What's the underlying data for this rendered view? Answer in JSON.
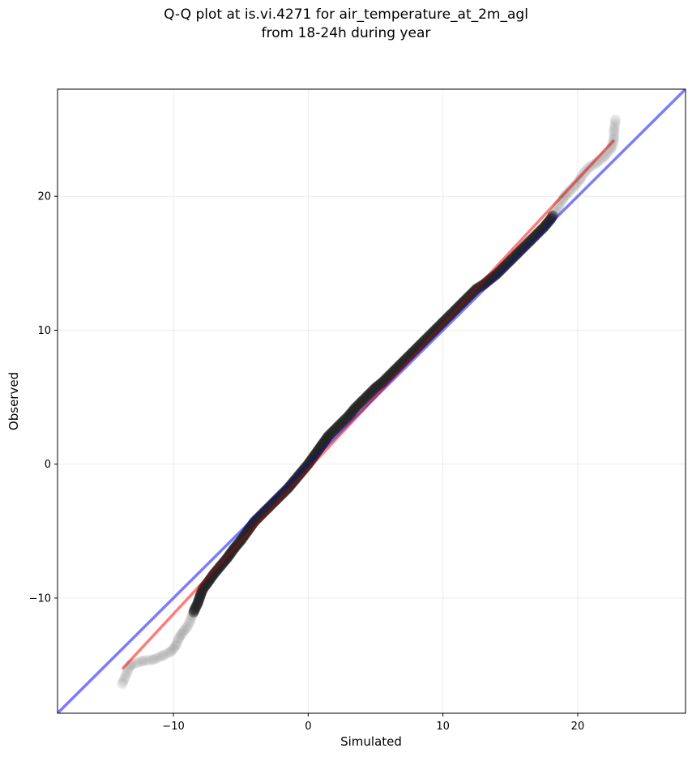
{
  "chart_data": {
    "type": "scatter",
    "title_line1": "Q-Q plot at is.vi.4271 for air_temperature_at_2m_agl",
    "title_line2": "from 18-24h during year",
    "xlabel": "Simulated",
    "ylabel": "Observed",
    "xlim": [
      -18.6,
      28.0
    ],
    "ylim": [
      -18.6,
      28.0
    ],
    "x_ticks": [
      -10,
      0,
      10,
      20
    ],
    "y_ticks": [
      -10,
      0,
      10,
      20
    ],
    "tick_labels": [
      "−10",
      "0",
      "10",
      "20"
    ],
    "grid": true,
    "identity_line": {
      "color": "#0000ff",
      "alpha": 0.35
    },
    "fit_line": {
      "x": [
        -13.8,
        22.7
      ],
      "y": [
        -15.3,
        24.2
      ],
      "color": "#ff0000",
      "alpha": 0.35
    },
    "points": [
      [
        -13.8,
        -16.4
      ],
      [
        -13.2,
        -15.0
      ],
      [
        -12.3,
        -14.7
      ],
      [
        -11.5,
        -14.6
      ],
      [
        -10.8,
        -14.3
      ],
      [
        -10.2,
        -14.0
      ],
      [
        -10.0,
        -13.8
      ],
      [
        -9.8,
        -13.5
      ],
      [
        -9.6,
        -13.0
      ],
      [
        -9.4,
        -12.7
      ],
      [
        -9.2,
        -12.4
      ],
      [
        -9.0,
        -12.2
      ],
      [
        -8.8,
        -11.8
      ],
      [
        -8.6,
        -11.3
      ],
      [
        -8.4,
        -10.8
      ],
      [
        -8.2,
        -10.4
      ],
      [
        -8.0,
        -9.8
      ],
      [
        -7.8,
        -9.3
      ],
      [
        -7.5,
        -8.9
      ],
      [
        -7.0,
        -8.2
      ],
      [
        -6.5,
        -7.6
      ],
      [
        -6.0,
        -7.0
      ],
      [
        -5.5,
        -6.3
      ],
      [
        -5.0,
        -5.7
      ],
      [
        -4.5,
        -5.0
      ],
      [
        -4.0,
        -4.3
      ],
      [
        -3.5,
        -3.8
      ],
      [
        -3.0,
        -3.3
      ],
      [
        -2.5,
        -2.8
      ],
      [
        -2.0,
        -2.3
      ],
      [
        -1.5,
        -1.8
      ],
      [
        -1.0,
        -1.2
      ],
      [
        -0.5,
        -0.6
      ],
      [
        0.0,
        0.0
      ],
      [
        0.5,
        0.7
      ],
      [
        1.0,
        1.4
      ],
      [
        1.5,
        2.1
      ],
      [
        2.0,
        2.6
      ],
      [
        2.5,
        3.1
      ],
      [
        3.0,
        3.6
      ],
      [
        3.5,
        4.2
      ],
      [
        4.0,
        4.7
      ],
      [
        4.5,
        5.2
      ],
      [
        5.0,
        5.7
      ],
      [
        5.5,
        6.1
      ],
      [
        6.0,
        6.6
      ],
      [
        6.5,
        7.1
      ],
      [
        7.0,
        7.6
      ],
      [
        7.5,
        8.1
      ],
      [
        8.0,
        8.6
      ],
      [
        8.5,
        9.1
      ],
      [
        9.0,
        9.6
      ],
      [
        9.5,
        10.1
      ],
      [
        10.0,
        10.6
      ],
      [
        10.5,
        11.1
      ],
      [
        11.0,
        11.6
      ],
      [
        11.5,
        12.1
      ],
      [
        12.0,
        12.6
      ],
      [
        12.5,
        13.1
      ],
      [
        13.0,
        13.4
      ],
      [
        13.5,
        13.8
      ],
      [
        14.0,
        14.2
      ],
      [
        14.5,
        14.7
      ],
      [
        15.0,
        15.2
      ],
      [
        15.5,
        15.7
      ],
      [
        16.0,
        16.2
      ],
      [
        16.5,
        16.7
      ],
      [
        17.0,
        17.2
      ],
      [
        17.5,
        17.7
      ],
      [
        18.0,
        18.3
      ],
      [
        18.3,
        18.8
      ],
      [
        18.6,
        19.3
      ],
      [
        18.9,
        19.8
      ],
      [
        19.1,
        20.1
      ],
      [
        19.4,
        20.4
      ],
      [
        19.8,
        20.8
      ],
      [
        20.2,
        21.3
      ],
      [
        20.5,
        21.8
      ],
      [
        20.9,
        22.2
      ],
      [
        21.4,
        22.5
      ],
      [
        22.0,
        23.0
      ],
      [
        22.5,
        23.6
      ],
      [
        22.7,
        24.3
      ],
      [
        22.7,
        24.9
      ],
      [
        22.8,
        25.7
      ]
    ]
  }
}
